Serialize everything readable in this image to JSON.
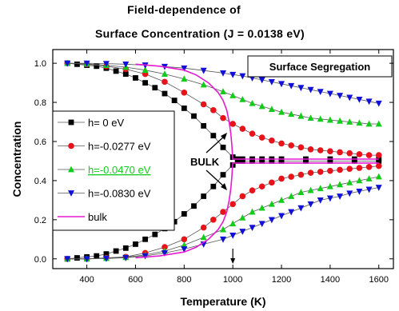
{
  "chart_data": {
    "type": "line",
    "title_lines": [
      "Field-dependence of",
      "Surface Concentration (J = 0.0138 eV)"
    ],
    "xlabel": "Temperature (K)",
    "ylabel": "Concentration",
    "xlim": [
      260,
      1660
    ],
    "ylim": [
      -0.05,
      1.07
    ],
    "xticks": [
      400,
      600,
      800,
      1000,
      1200,
      1400,
      1600
    ],
    "yticks": [
      0.0,
      0.2,
      0.4,
      0.6,
      0.8,
      1.0
    ],
    "xtick_labels": [
      "400",
      "600",
      "800",
      "1000",
      "1200",
      "1400",
      "1600"
    ],
    "ytick_labels": [
      "0.0",
      "0.2",
      "0.4",
      "0.6",
      "0.8",
      "1.0"
    ],
    "grid": false,
    "legend_position": "left",
    "annotations": {
      "panel_label": "Surface Segregation",
      "bulk_label": "BULK",
      "arrow_at_x": 1000
    },
    "series": [
      {
        "name": "h= 0 eV",
        "color": "#000000",
        "marker": "square",
        "branches": [
          {
            "x": [
              320,
              360,
              400,
              440,
              480,
              520,
              560,
              600,
              640,
              680,
              720,
              760,
              800,
              840,
              880,
              920,
              960,
              1000,
              1020,
              1040,
              1080,
              1120,
              1160,
              1200,
              1300,
              1400,
              1500,
              1600
            ],
            "y": [
              1.0,
              0.995,
              0.99,
              0.985,
              0.975,
              0.96,
              0.945,
              0.925,
              0.9,
              0.875,
              0.845,
              0.81,
              0.77,
              0.73,
              0.68,
              0.63,
              0.57,
              0.52,
              0.51,
              0.51,
              0.51,
              0.51,
              0.51,
              0.51,
              0.51,
              0.51,
              0.51,
              0.51
            ]
          },
          {
            "x": [
              320,
              360,
              400,
              440,
              480,
              520,
              560,
              600,
              640,
              680,
              720,
              760,
              800,
              840,
              880,
              920,
              960,
              1000,
              1020,
              1040,
              1080,
              1120,
              1160,
              1200,
              1300,
              1400,
              1500,
              1600
            ],
            "y": [
              0.0,
              0.005,
              0.01,
              0.015,
              0.025,
              0.04,
              0.055,
              0.075,
              0.1,
              0.125,
              0.155,
              0.19,
              0.23,
              0.27,
              0.32,
              0.37,
              0.43,
              0.48,
              0.5,
              0.5,
              0.5,
              0.5,
              0.5,
              0.5,
              0.5,
              0.5,
              0.5,
              0.5
            ]
          }
        ]
      },
      {
        "name": "h=-0.0277 eV",
        "color": "#e8121a",
        "marker": "circle",
        "branches": [
          {
            "x": [
              320,
              400,
              480,
              560,
              640,
              720,
              800,
              880,
              920,
              960,
              1000,
              1040,
              1080,
              1120,
              1160,
              1200,
              1240,
              1280,
              1320,
              1360,
              1400,
              1440,
              1480,
              1520,
              1560,
              1600
            ],
            "y": [
              1.0,
              0.995,
              0.985,
              0.97,
              0.945,
              0.905,
              0.85,
              0.79,
              0.76,
              0.72,
              0.69,
              0.665,
              0.64,
              0.62,
              0.605,
              0.59,
              0.58,
              0.57,
              0.56,
              0.555,
              0.55,
              0.545,
              0.54,
              0.535,
              0.53,
              0.53
            ]
          },
          {
            "x": [
              320,
              400,
              480,
              560,
              640,
              720,
              800,
              880,
              920,
              960,
              1000,
              1040,
              1080,
              1120,
              1160,
              1200,
              1240,
              1280,
              1320,
              1360,
              1400,
              1440,
              1480,
              1520,
              1560,
              1600
            ],
            "y": [
              0.0,
              0.0,
              0.005,
              0.01,
              0.03,
              0.06,
              0.1,
              0.16,
              0.2,
              0.24,
              0.28,
              0.32,
              0.35,
              0.37,
              0.39,
              0.41,
              0.42,
              0.43,
              0.44,
              0.445,
              0.45,
              0.455,
              0.46,
              0.465,
              0.47,
              0.475
            ]
          }
        ]
      },
      {
        "name": "h=-0.0470 eV",
        "color": "#12cc1a",
        "marker": "triangle-up",
        "branches": [
          {
            "x": [
              320,
              400,
              480,
              560,
              640,
              720,
              800,
              880,
              960,
              1000,
              1040,
              1080,
              1120,
              1160,
              1200,
              1240,
              1280,
              1320,
              1360,
              1400,
              1440,
              1480,
              1520,
              1560,
              1600
            ],
            "y": [
              1.0,
              0.997,
              0.99,
              0.98,
              0.965,
              0.945,
              0.92,
              0.89,
              0.855,
              0.835,
              0.815,
              0.795,
              0.78,
              0.765,
              0.75,
              0.74,
              0.73,
              0.72,
              0.715,
              0.71,
              0.705,
              0.7,
              0.695,
              0.69,
              0.69
            ]
          },
          {
            "x": [
              320,
              400,
              480,
              560,
              640,
              720,
              800,
              880,
              960,
              1000,
              1040,
              1080,
              1120,
              1160,
              1200,
              1240,
              1280,
              1320,
              1360,
              1400,
              1440,
              1480,
              1520,
              1560,
              1600
            ],
            "y": [
              0.0,
              0.0,
              0.003,
              0.008,
              0.02,
              0.04,
              0.07,
              0.11,
              0.15,
              0.18,
              0.21,
              0.24,
              0.26,
              0.28,
              0.3,
              0.32,
              0.34,
              0.35,
              0.36,
              0.37,
              0.38,
              0.39,
              0.4,
              0.41,
              0.42
            ]
          }
        ]
      },
      {
        "name": "h=-0.0830 eV",
        "color": "#1010d8",
        "marker": "triangle-down",
        "branches": [
          {
            "x": [
              320,
              400,
              480,
              560,
              640,
              720,
              800,
              880,
              960,
              1000,
              1040,
              1080,
              1120,
              1160,
              1200,
              1240,
              1280,
              1320,
              1360,
              1400,
              1440,
              1480,
              1520,
              1560,
              1600
            ],
            "y": [
              1.0,
              1.0,
              0.998,
              0.995,
              0.99,
              0.983,
              0.975,
              0.963,
              0.95,
              0.942,
              0.935,
              0.925,
              0.915,
              0.905,
              0.895,
              0.885,
              0.875,
              0.865,
              0.855,
              0.845,
              0.835,
              0.825,
              0.815,
              0.805,
              0.795
            ]
          },
          {
            "x": [
              320,
              400,
              480,
              560,
              640,
              720,
              800,
              880,
              960,
              1000,
              1040,
              1080,
              1120,
              1160,
              1200,
              1240,
              1280,
              1320,
              1360,
              1400,
              1440,
              1480,
              1520,
              1560,
              1600
            ],
            "y": [
              0.0,
              0.0,
              0.002,
              0.006,
              0.015,
              0.03,
              0.05,
              0.075,
              0.1,
              0.12,
              0.14,
              0.16,
              0.18,
              0.2,
              0.22,
              0.24,
              0.26,
              0.28,
              0.3,
              0.31,
              0.32,
              0.335,
              0.345,
              0.355,
              0.365
            ]
          }
        ]
      },
      {
        "name": "bulk",
        "color": "#e51ad0",
        "marker": "none",
        "branches": [
          {
            "x": [
              600,
              700,
              800,
              850,
              900,
              940,
              960,
              975,
              985,
              992,
              996,
              998,
              1000,
              1020,
              1100,
              1200,
              1300,
              1400,
              1500,
              1600
            ],
            "y": [
              0.995,
              0.985,
              0.965,
              0.94,
              0.9,
              0.85,
              0.81,
              0.76,
              0.7,
              0.64,
              0.58,
              0.54,
              0.51,
              0.51,
              0.51,
              0.51,
              0.51,
              0.51,
              0.51,
              0.51
            ]
          },
          {
            "x": [
              600,
              700,
              800,
              850,
              900,
              940,
              960,
              975,
              985,
              992,
              996,
              998,
              1000,
              1020,
              1100,
              1200,
              1300,
              1400,
              1500,
              1600
            ],
            "y": [
              0.005,
              0.015,
              0.035,
              0.06,
              0.1,
              0.15,
              0.19,
              0.24,
              0.3,
              0.36,
              0.42,
              0.46,
              0.49,
              0.49,
              0.49,
              0.49,
              0.49,
              0.49,
              0.49,
              0.49
            ]
          }
        ]
      }
    ]
  }
}
